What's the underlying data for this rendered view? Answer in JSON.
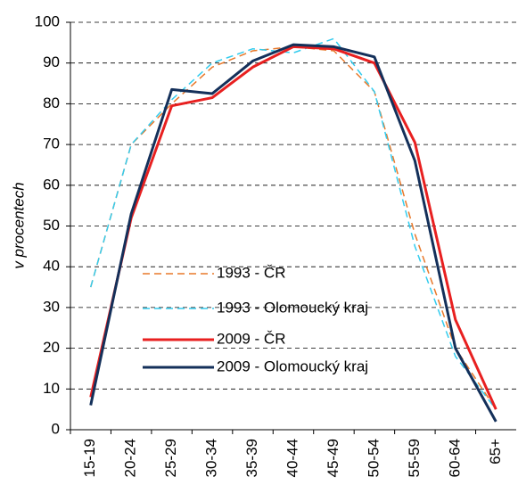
{
  "chart_data": {
    "type": "line",
    "y_label": "v procentech",
    "categories": [
      "15-19",
      "20-24",
      "25-29",
      "30-34",
      "35-39",
      "40-44",
      "45-49",
      "50-54",
      "55-59",
      "60-64",
      "65+"
    ],
    "series": [
      {
        "name": "1993 - ČR",
        "color": "#e8782a",
        "dash": true,
        "values": [
          35,
          70,
          80,
          89,
          93,
          94,
          93,
          83,
          48,
          20,
          5
        ]
      },
      {
        "name": "1993 - Olomoucký kraj",
        "color": "#33ccee",
        "dash": true,
        "values": [
          35,
          70,
          81,
          90,
          93.5,
          92.5,
          96,
          83,
          45,
          18,
          5
        ]
      },
      {
        "name": "2009 - ČR",
        "color": "#e82020",
        "dash": false,
        "values": [
          8,
          52,
          79.5,
          81.5,
          89,
          94,
          93.5,
          90,
          70.5,
          27,
          5
        ]
      },
      {
        "name": "2009 - Olomoucký kraj",
        "color": "#14305a",
        "dash": false,
        "values": [
          6,
          53,
          83.5,
          82.5,
          90.5,
          94.5,
          94,
          91.5,
          66,
          20,
          2
        ]
      }
    ],
    "ylim": [
      0,
      100
    ],
    "yticks": [
      0,
      10,
      20,
      30,
      40,
      50,
      60,
      70,
      80,
      90,
      100
    ],
    "grid": true
  }
}
